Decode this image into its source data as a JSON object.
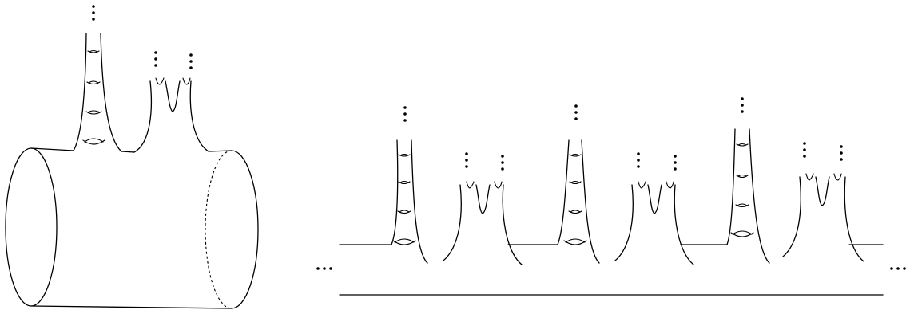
{
  "figure": {
    "panels": [
      {
        "name": "cylinder-with-spikes",
        "outer_ellipsis": false
      },
      {
        "name": "strip-with-repeating-spikes",
        "outer_ellipsis": true,
        "repeat_units": 3
      }
    ],
    "ellipsis_glyph": "⋮",
    "horizontal_ellipsis_glyph": "..."
  }
}
